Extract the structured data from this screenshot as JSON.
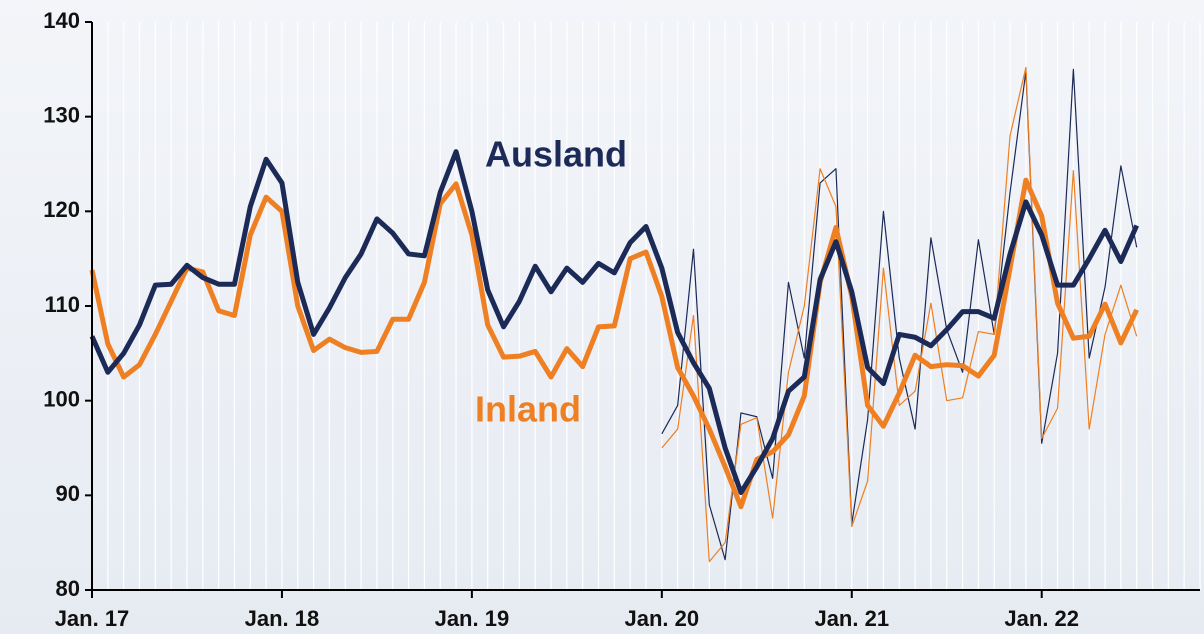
{
  "chart_data": {
    "type": "line",
    "x": [
      0,
      1,
      2,
      3,
      4,
      5,
      6,
      7,
      8,
      9,
      10,
      11,
      12,
      13,
      14,
      15,
      16,
      17,
      18,
      19,
      20,
      21,
      22,
      23,
      24,
      25,
      26,
      27,
      28,
      29,
      30,
      31,
      32,
      33,
      34,
      35,
      36,
      37,
      38,
      39,
      40,
      41,
      42,
      43,
      44,
      45,
      46,
      47,
      48,
      49,
      50,
      51,
      52,
      53,
      54,
      55,
      56,
      57,
      58,
      59,
      60,
      61,
      62,
      63,
      64,
      65,
      66
    ],
    "xlim": [
      0,
      70
    ],
    "xticks": [
      {
        "value": 0,
        "label": "Jan. 17"
      },
      {
        "value": 12,
        "label": "Jan. 18"
      },
      {
        "value": 24,
        "label": "Jan. 19"
      },
      {
        "value": 36,
        "label": "Jan. 20"
      },
      {
        "value": 48,
        "label": "Jan. 21"
      },
      {
        "value": 60,
        "label": "Jan. 22"
      }
    ],
    "ylim": [
      80,
      140
    ],
    "yticks": [
      80,
      90,
      100,
      110,
      120,
      130,
      140
    ],
    "series": [
      {
        "color": "#1b2a57",
        "width": 1.2,
        "values": [
          null,
          null,
          null,
          null,
          null,
          null,
          null,
          null,
          null,
          null,
          null,
          null,
          null,
          null,
          null,
          null,
          null,
          null,
          null,
          null,
          null,
          null,
          null,
          null,
          null,
          null,
          null,
          null,
          null,
          null,
          null,
          null,
          null,
          null,
          null,
          null,
          96.5,
          99.5,
          116,
          89,
          83.2,
          98.7,
          98.3,
          91.8,
          112.5,
          104.5,
          123,
          124.5,
          87,
          98,
          120,
          104.5,
          97,
          117.2,
          107.5,
          103,
          117,
          107,
          122,
          134.8,
          95.5,
          105,
          135,
          104.5,
          112,
          124.8,
          116.2
        ]
      },
      {
        "color": "#ee7f22",
        "width": 1.2,
        "values": [
          null,
          null,
          null,
          null,
          null,
          null,
          null,
          null,
          null,
          null,
          null,
          null,
          null,
          null,
          null,
          null,
          null,
          null,
          null,
          null,
          null,
          null,
          null,
          null,
          null,
          null,
          null,
          null,
          null,
          null,
          null,
          null,
          null,
          null,
          null,
          null,
          95,
          97,
          109,
          83,
          85,
          97.5,
          98.2,
          87.6,
          103,
          110,
          124.5,
          120.5,
          86.7,
          91.5,
          114,
          99.5,
          101,
          110.3,
          100,
          100.3,
          107.3,
          107,
          128,
          135.2,
          96,
          99.2,
          124.3,
          97,
          107,
          112.2,
          106.8
        ]
      },
      {
        "name": "Inland",
        "color": "#ee7f22",
        "width": 5,
        "values": [
          113.8,
          106,
          102.5,
          103.8,
          107,
          110.5,
          114,
          113.6,
          109.5,
          109,
          117.5,
          121.5,
          120,
          110,
          105.3,
          106.5,
          105.6,
          105.1,
          105.2,
          108.6,
          108.6,
          112.5,
          120.8,
          122.9,
          117.5,
          108,
          104.6,
          104.7,
          105.2,
          102.5,
          105.5,
          103.6,
          107.8,
          107.9,
          115,
          115.7,
          111,
          103.5,
          100.5,
          97,
          93,
          88.8,
          93.8,
          94.6,
          96.4,
          100.5,
          112.5,
          118.3,
          111,
          99.5,
          97.3,
          100.8,
          104.8,
          103.6,
          103.8,
          103.7,
          102.6,
          104.8,
          114,
          123.3,
          119.5,
          110.3,
          106.6,
          106.8,
          110.2,
          106.1,
          109.6
        ]
      },
      {
        "name": "Ausland",
        "color": "#1b2a57",
        "width": 5,
        "values": [
          106.8,
          103,
          105,
          108,
          112.2,
          112.3,
          114.3,
          113,
          112.3,
          112.3,
          120.5,
          125.5,
          123,
          112.5,
          107,
          109.8,
          113,
          115.5,
          119.2,
          117.7,
          115.5,
          115.3,
          122,
          126.3,
          120,
          111.7,
          107.8,
          110.5,
          114.2,
          111.5,
          114,
          112.5,
          114.5,
          113.5,
          116.7,
          118.4,
          114,
          107.2,
          104,
          101.3,
          95,
          90.3,
          93,
          96,
          101,
          102.5,
          112.8,
          116.8,
          111.5,
          103.5,
          101.8,
          107,
          106.7,
          105.8,
          107.5,
          109.4,
          109.4,
          108.7,
          115.5,
          121,
          117.5,
          112.2,
          112.2,
          115,
          118,
          114.7,
          118.5
        ]
      }
    ]
  }
}
